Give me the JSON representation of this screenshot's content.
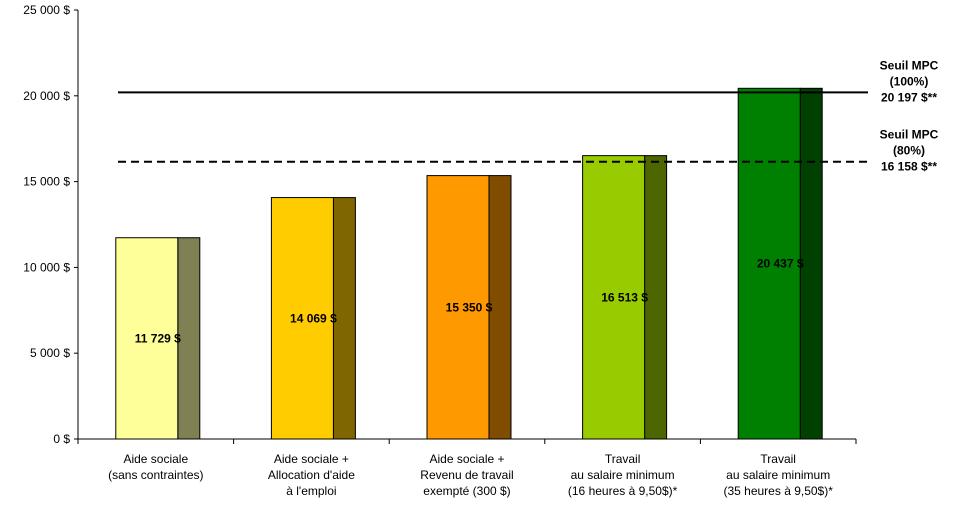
{
  "chart_data": {
    "type": "bar",
    "title": "",
    "xlabel": "",
    "ylabel": "",
    "ylim": [
      0,
      25000
    ],
    "y_ticks": [
      {
        "value": 0,
        "label": "0 $"
      },
      {
        "value": 5000,
        "label": "5 000 $"
      },
      {
        "value": 10000,
        "label": "10 000 $"
      },
      {
        "value": 15000,
        "label": "15 000 $"
      },
      {
        "value": 20000,
        "label": "20 000 $"
      },
      {
        "value": 25000,
        "label": "25 000 $"
      }
    ],
    "categories": [
      [
        "Aide sociale",
        "(sans contraintes)"
      ],
      [
        "Aide sociale +",
        "Allocation d'aide",
        "à l'emploi"
      ],
      [
        "Aide sociale +",
        "Revenu de travail",
        "exempté (300 $)"
      ],
      [
        "Travail",
        "au salaire minimum",
        "(16 heures à 9,50$)*"
      ],
      [
        "Travail",
        "au salaire minimum",
        "(35 heures à 9,50$)*"
      ]
    ],
    "values": [
      11729,
      14069,
      15350,
      16513,
      20437
    ],
    "value_labels": [
      "11 729 $",
      "14 069 $",
      "15 350 $",
      "16 513 $",
      "20 437 $"
    ],
    "colors": [
      {
        "front": "#FFFF99",
        "side": "#808055"
      },
      {
        "front": "#FFCC00",
        "side": "#806600"
      },
      {
        "front": "#FF9900",
        "side": "#804D00"
      },
      {
        "front": "#99CC00",
        "side": "#4D6600"
      },
      {
        "front": "#008000",
        "side": "#004000"
      }
    ],
    "reference_lines": [
      {
        "value": 20197,
        "style": "solid",
        "label": [
          "Seuil MPC",
          "(100%)",
          "20 197 $**"
        ]
      },
      {
        "value": 16158,
        "style": "dashed",
        "label": [
          "Seuil MPC",
          "(80%)",
          "16 158 $**"
        ]
      }
    ],
    "grid": false,
    "legend": "none"
  }
}
